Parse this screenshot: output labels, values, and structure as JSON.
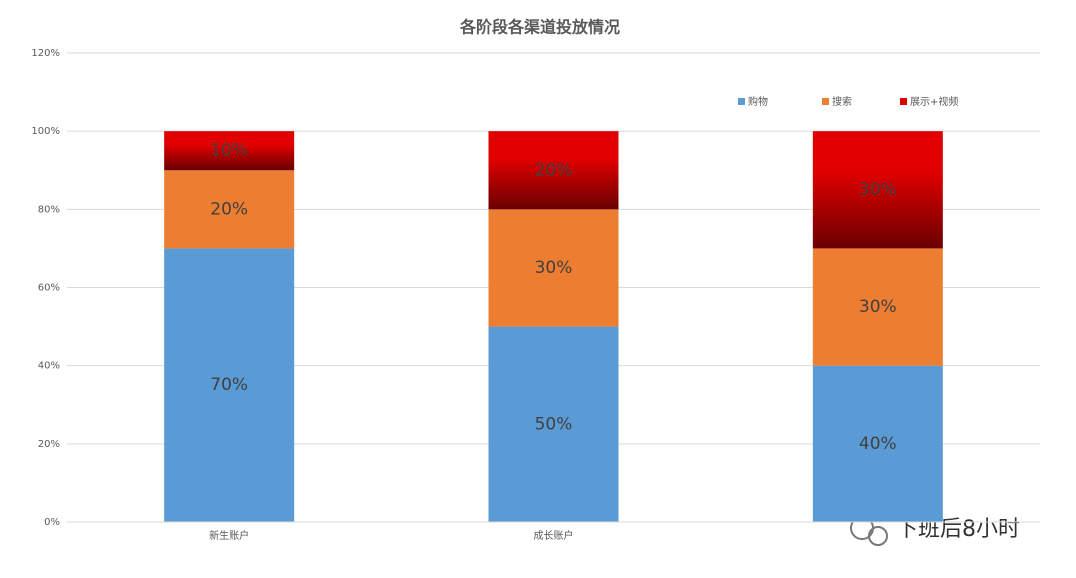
{
  "chart_data": {
    "type": "stacked_bar",
    "title": "各阶段各渠道投放情况",
    "categories": [
      "新生账户",
      "成长账户",
      null
    ],
    "series": [
      {
        "name": "购物",
        "color": "#5b9bd5",
        "values": [
          70,
          50,
          40
        ],
        "value_labels": [
          "70%",
          "50%",
          "40%"
        ]
      },
      {
        "name": "搜索",
        "color": "#ed7d31",
        "values": [
          20,
          30,
          30
        ],
        "value_labels": [
          "20%",
          "30%",
          "30%"
        ]
      },
      {
        "name": "展示+视频",
        "color": "#e00000",
        "values": [
          10,
          20,
          30
        ],
        "value_labels": [
          "10%",
          "20%",
          "30%"
        ]
      }
    ],
    "ylim": [
      0,
      120
    ],
    "yticks": [
      {
        "value": 0,
        "label": "0%"
      },
      {
        "value": 20,
        "label": "20%"
      },
      {
        "value": 40,
        "label": "40%"
      },
      {
        "value": 60,
        "label": "60%"
      },
      {
        "value": 80,
        "label": "80%"
      },
      {
        "value": 100,
        "label": "100%"
      },
      {
        "value": 120,
        "label": "120%"
      }
    ],
    "grid": true,
    "legend": "top-right",
    "watermark": "下班后8小时"
  }
}
